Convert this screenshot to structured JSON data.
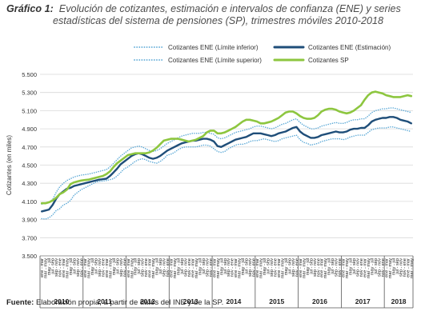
{
  "figure": {
    "label": "Gráfico 1:",
    "title_line1": "Evolución de cotizantes, estimación e intervalos de confianza (ENE) y series",
    "title_line2": "estadísticas del sistema de pensiones (SP), trimestres móviles 2010-2018",
    "source_label": "Fuente:",
    "source_text": "Elaboración propia, a partir de datos del INE y de la SP."
  },
  "colors": {
    "ene_estimate": "#1f4e79",
    "ene_bounds": "#5aa8d6",
    "sp": "#8dc63f",
    "grid": "#d9d9d9",
    "axis": "#7f7f7f"
  },
  "chart_data": {
    "type": "line",
    "ylabel": "Cotizantes (en miles)",
    "ylim": [
      3500,
      5500
    ],
    "yticks": [
      3500,
      3700,
      3900,
      4100,
      4300,
      4500,
      4700,
      4900,
      5100,
      5300,
      5500
    ],
    "ytick_labels": [
      "3.500",
      "3.700",
      "3.900",
      "4.100",
      "4.300",
      "4.500",
      "4.700",
      "4.900",
      "5.100",
      "5.300",
      "5.500"
    ],
    "grid": "horizontal",
    "legend_position": "top",
    "period_labels": [
      "ene - mar",
      "mar - may",
      "may - jul",
      "jul - sep",
      "sep - nov",
      "nov - ene"
    ],
    "years": [
      "2010",
      "2011",
      "2012",
      "2013",
      "2014",
      "2015",
      "2016",
      "2017",
      "2018"
    ],
    "periods_per_year": [
      12,
      12,
      12,
      12,
      12,
      12,
      12,
      12,
      8
    ],
    "series": [
      {
        "name": "Cotizantes ENE (Límite inferior)",
        "style": "dotted",
        "color_key": "ene_bounds",
        "values": [
          3910,
          3905,
          3920,
          3950,
          4000,
          4020,
          4060,
          4080,
          4110,
          4170,
          4200,
          4230,
          4250,
          4270,
          4290,
          4310,
          4320,
          4325,
          4330,
          4340,
          4350,
          4380,
          4420,
          4460,
          4480,
          4510,
          4540,
          4560,
          4570,
          4560,
          4540,
          4530,
          4520,
          4540,
          4570,
          4610,
          4620,
          4640,
          4670,
          4690,
          4700,
          4700,
          4700,
          4700,
          4710,
          4720,
          4720,
          4710,
          4680,
          4650,
          4640,
          4650,
          4680,
          4700,
          4720,
          4730,
          4730,
          4740,
          4760,
          4770,
          4770,
          4780,
          4790,
          4780,
          4770,
          4760,
          4770,
          4790,
          4800,
          4810,
          4820,
          4830,
          4780,
          4750,
          4740,
          4720,
          4730,
          4740,
          4760,
          4770,
          4780,
          4790,
          4790,
          4790,
          4780,
          4790,
          4810,
          4820,
          4830,
          4830,
          4830,
          4860,
          4890,
          4900,
          4910,
          4910,
          4910,
          4920,
          4920,
          4910,
          4900,
          4890,
          4880,
          4870
        ]
      },
      {
        "name": "Cotizantes ENE (Estimación)",
        "style": "solid",
        "color_key": "ene_estimate",
        "values": [
          3990,
          4000,
          4010,
          4060,
          4130,
          4180,
          4210,
          4240,
          4250,
          4270,
          4280,
          4290,
          4300,
          4310,
          4320,
          4330,
          4340,
          4345,
          4350,
          4380,
          4420,
          4460,
          4510,
          4540,
          4570,
          4600,
          4620,
          4630,
          4620,
          4600,
          4580,
          4570,
          4580,
          4600,
          4630,
          4660,
          4680,
          4700,
          4720,
          4740,
          4750,
          4760,
          4770,
          4770,
          4780,
          4790,
          4790,
          4780,
          4760,
          4710,
          4700,
          4720,
          4740,
          4760,
          4780,
          4790,
          4800,
          4810,
          4830,
          4850,
          4850,
          4850,
          4840,
          4830,
          4820,
          4830,
          4850,
          4860,
          4870,
          4890,
          4910,
          4920,
          4870,
          4840,
          4820,
          4800,
          4800,
          4810,
          4830,
          4840,
          4850,
          4860,
          4870,
          4860,
          4860,
          4870,
          4890,
          4900,
          4900,
          4910,
          4910,
          4940,
          4980,
          5000,
          5010,
          5020,
          5020,
          5030,
          5030,
          5020,
          5000,
          4990,
          4980,
          4960
        ]
      },
      {
        "name": "Cotizantes ENE (Límite superior)",
        "style": "dotted",
        "color_key": "ene_bounds",
        "values": [
          4070,
          4080,
          4090,
          4120,
          4200,
          4260,
          4300,
          4330,
          4350,
          4370,
          4380,
          4390,
          4395,
          4400,
          4410,
          4420,
          4430,
          4440,
          4450,
          4480,
          4520,
          4560,
          4600,
          4630,
          4660,
          4690,
          4700,
          4710,
          4700,
          4680,
          4660,
          4650,
          4660,
          4680,
          4710,
          4740,
          4760,
          4780,
          4800,
          4820,
          4830,
          4840,
          4850,
          4850,
          4850,
          4860,
          4860,
          4850,
          4840,
          4800,
          4790,
          4800,
          4820,
          4840,
          4860,
          4870,
          4880,
          4890,
          4900,
          4920,
          4930,
          4930,
          4920,
          4910,
          4900,
          4910,
          4930,
          4950,
          4960,
          4980,
          5000,
          5010,
          4970,
          4940,
          4920,
          4900,
          4900,
          4910,
          4930,
          4940,
          4950,
          4960,
          4970,
          4960,
          4960,
          4970,
          4990,
          5000,
          5000,
          5010,
          5010,
          5040,
          5080,
          5100,
          5110,
          5120,
          5120,
          5130,
          5130,
          5120,
          5110,
          5100,
          5090,
          5080
        ]
      },
      {
        "name": "Cotizantes SP",
        "style": "solid",
        "color_key": "sp",
        "values": [
          4080,
          4080,
          4090,
          4110,
          4140,
          4180,
          4200,
          4230,
          4290,
          4310,
          4320,
          4330,
          4335,
          4340,
          4350,
          4360,
          4370,
          4380,
          4400,
          4430,
          4480,
          4520,
          4550,
          4580,
          4610,
          4620,
          4630,
          4630,
          4630,
          4630,
          4640,
          4660,
          4690,
          4730,
          4770,
          4780,
          4790,
          4790,
          4790,
          4780,
          4770,
          4760,
          4770,
          4780,
          4800,
          4820,
          4860,
          4880,
          4880,
          4850,
          4850,
          4860,
          4880,
          4900,
          4920,
          4950,
          4980,
          5000,
          5000,
          4990,
          4980,
          4960,
          4960,
          4970,
          4980,
          5000,
          5020,
          5050,
          5080,
          5090,
          5090,
          5070,
          5040,
          5020,
          5010,
          5010,
          5020,
          5050,
          5090,
          5110,
          5120,
          5120,
          5110,
          5090,
          5080,
          5070,
          5080,
          5100,
          5130,
          5160,
          5220,
          5270,
          5300,
          5310,
          5300,
          5290,
          5270,
          5260,
          5250,
          5250,
          5250,
          5260,
          5270,
          5260
        ]
      }
    ]
  }
}
